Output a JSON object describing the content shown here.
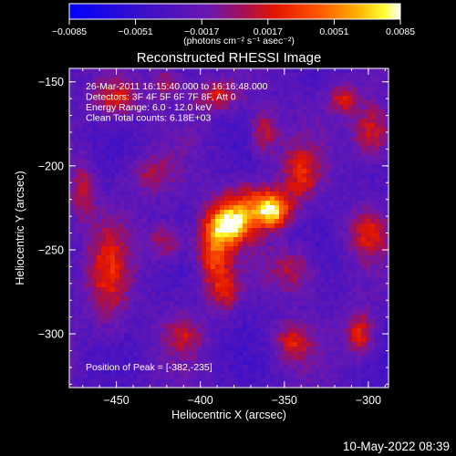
{
  "chart_data": {
    "type": "heatmap",
    "title": "Reconstructed RHESSI Image",
    "xlabel": "Heliocentric X (arcsec)",
    "ylabel": "Heliocentric Y (arcsec)",
    "xlim": [
      -478,
      -288
    ],
    "ylim": [
      -332,
      -142
    ],
    "x_ticks": [
      -450,
      -400,
      -350,
      -300
    ],
    "y_ticks": [
      -150,
      -200,
      -250,
      -300
    ],
    "colorbar": {
      "range": [
        -0.0085,
        0.0085
      ],
      "ticks": [
        -0.0085,
        -0.0051,
        -0.0017,
        0.0017,
        0.0051,
        0.0085
      ],
      "units": "(photons cm⁻² s⁻¹ asec⁻²)"
    },
    "info_lines": [
      "26-Mar-2011 16:15:40.000 to 16:16:48.000",
      "Detectors: 3F 4F 5F 6F 7F 8F, Att 0",
      "Energy Range: 6.0 - 12.0 keV",
      "Clean     Total counts: 6.18E+03"
    ],
    "peak_label": "Position of Peak = [-382,-235]",
    "peak": {
      "x": -382,
      "y": -235,
      "value": 0.0085
    },
    "sources": [
      {
        "x": -382,
        "y": -235,
        "sx": 9,
        "sy": 8,
        "amp": 0.0095
      },
      {
        "x": -357,
        "y": -227,
        "sx": 7,
        "sy": 7,
        "amp": 0.0085
      },
      {
        "x": -370,
        "y": -222,
        "sx": 13,
        "sy": 9,
        "amp": 0.005
      },
      {
        "x": -392,
        "y": -252,
        "sx": 7,
        "sy": 14,
        "amp": 0.0065
      },
      {
        "x": -385,
        "y": -275,
        "sx": 6,
        "sy": 8,
        "amp": 0.004
      },
      {
        "x": -345,
        "y": -262,
        "sx": 10,
        "sy": 10,
        "amp": 0.004
      },
      {
        "x": -340,
        "y": -205,
        "sx": 8,
        "sy": 12,
        "amp": 0.0045
      },
      {
        "x": -362,
        "y": -180,
        "sx": 6,
        "sy": 10,
        "amp": 0.0045
      },
      {
        "x": -390,
        "y": -158,
        "sx": 10,
        "sy": 6,
        "amp": 0.0045
      },
      {
        "x": -450,
        "y": -160,
        "sx": 10,
        "sy": 8,
        "amp": 0.005
      },
      {
        "x": -455,
        "y": -265,
        "sx": 9,
        "sy": 22,
        "amp": 0.0045
      },
      {
        "x": -420,
        "y": -245,
        "sx": 8,
        "sy": 8,
        "amp": 0.004
      },
      {
        "x": -410,
        "y": -300,
        "sx": 8,
        "sy": 8,
        "amp": 0.0035
      },
      {
        "x": -345,
        "y": -305,
        "sx": 8,
        "sy": 8,
        "amp": 0.004
      },
      {
        "x": -298,
        "y": -180,
        "sx": 8,
        "sy": 12,
        "amp": 0.0055
      },
      {
        "x": -305,
        "y": -300,
        "sx": 6,
        "sy": 10,
        "amp": 0.0055
      },
      {
        "x": -315,
        "y": -160,
        "sx": 6,
        "sy": 6,
        "amp": 0.0045
      },
      {
        "x": -420,
        "y": -150,
        "sx": 6,
        "sy": 6,
        "amp": 0.0035
      },
      {
        "x": -430,
        "y": -205,
        "sx": 10,
        "sy": 8,
        "amp": 0.003
      },
      {
        "x": -300,
        "y": -240,
        "sx": 8,
        "sy": 10,
        "amp": 0.004
      },
      {
        "x": -470,
        "y": -215,
        "sx": 5,
        "sy": 12,
        "amp": 0.004
      }
    ],
    "grid": false,
    "colormap": "blue-purple-red-orange-yellow-white"
  },
  "footer": {
    "date": "10-May-2022 08:39"
  }
}
